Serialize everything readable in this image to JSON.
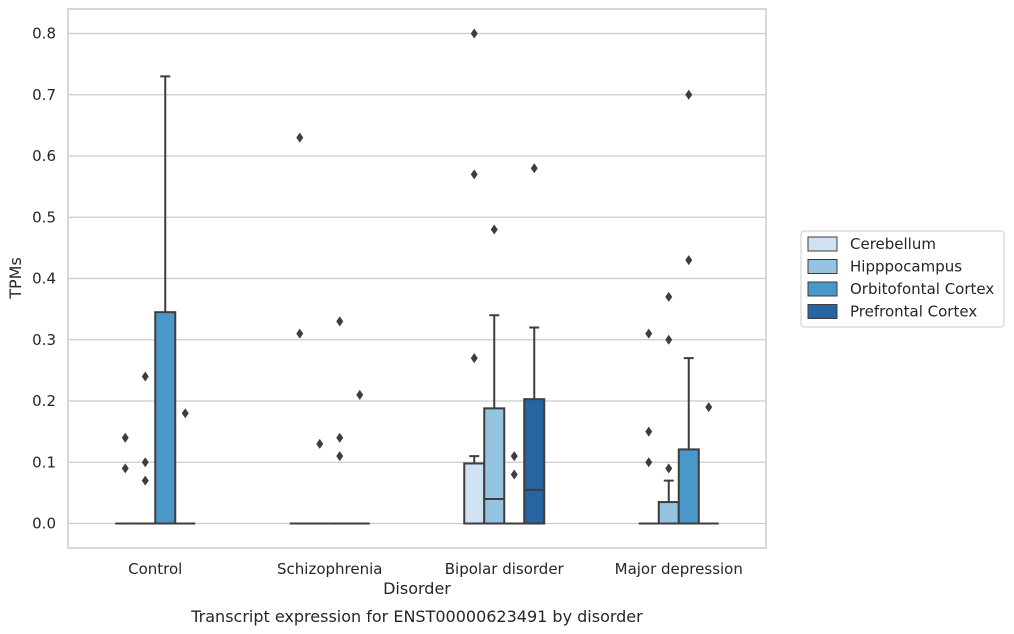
{
  "chart_data": {
    "type": "box",
    "caption": "Transcript expression for ENST00000623491 by disorder",
    "xlabel": "Disorder",
    "ylabel": "TPMs",
    "ylim": [
      -0.04,
      0.84
    ],
    "yticks": [
      0.0,
      0.1,
      0.2,
      0.3,
      0.4,
      0.5,
      0.6,
      0.7,
      0.8
    ],
    "ytick_labels": [
      "0.0",
      "0.1",
      "0.2",
      "0.3",
      "0.4",
      "0.5",
      "0.6",
      "0.7",
      "0.8"
    ],
    "grid": "horizontal",
    "legend_position": "right",
    "categories": [
      "Control",
      "Schizophrenia",
      "Bipolar disorder",
      "Major depression"
    ],
    "series": [
      {
        "name": "Cerebellum",
        "color": "#d0e1f2",
        "boxes": [
          {
            "q1": 0,
            "median": 0,
            "q3": 0,
            "whisker_low": 0,
            "whisker_high": 0,
            "outliers": [
              0.14,
              0.09
            ]
          },
          {
            "q1": 0,
            "median": 0,
            "q3": 0,
            "whisker_low": 0,
            "whisker_high": 0,
            "outliers": [
              0.63,
              0.31
            ]
          },
          {
            "q1": 0,
            "median": 0,
            "q3": 0.098,
            "whisker_low": 0,
            "whisker_high": 0.11,
            "outliers": [
              0.8,
              0.57,
              0.27
            ]
          },
          {
            "q1": 0,
            "median": 0,
            "q3": 0,
            "whisker_low": 0,
            "whisker_high": 0,
            "outliers": [
              0.31,
              0.15,
              0.1
            ]
          }
        ]
      },
      {
        "name": "Hipppocampus",
        "color": "#94c4df",
        "boxes": [
          {
            "q1": 0,
            "median": 0,
            "q3": 0,
            "whisker_low": 0,
            "whisker_high": 0,
            "outliers": [
              0.24,
              0.1,
              0.07
            ]
          },
          {
            "q1": 0,
            "median": 0,
            "q3": 0,
            "whisker_low": 0,
            "whisker_high": 0,
            "outliers": [
              0.13
            ]
          },
          {
            "q1": 0,
            "median": 0.04,
            "q3": 0.188,
            "whisker_low": 0,
            "whisker_high": 0.34,
            "outliers": [
              0.48
            ]
          },
          {
            "q1": 0,
            "median": 0,
            "q3": 0.035,
            "whisker_low": 0,
            "whisker_high": 0.07,
            "outliers": [
              0.37,
              0.3,
              0.09
            ]
          }
        ]
      },
      {
        "name": "Orbitofontal Cortex",
        "color": "#4a98c9",
        "boxes": [
          {
            "q1": 0,
            "median": 0,
            "q3": 0.345,
            "whisker_low": 0,
            "whisker_high": 0.73,
            "outliers": []
          },
          {
            "q1": 0,
            "median": 0,
            "q3": 0,
            "whisker_low": 0,
            "whisker_high": 0,
            "outliers": [
              0.33,
              0.14,
              0.11
            ]
          },
          {
            "q1": 0,
            "median": 0,
            "q3": 0,
            "whisker_low": 0,
            "whisker_high": 0,
            "outliers": [
              0.11,
              0.08
            ]
          },
          {
            "q1": 0,
            "median": 0,
            "q3": 0.121,
            "whisker_low": 0,
            "whisker_high": 0.27,
            "outliers": [
              0.7,
              0.43
            ]
          }
        ]
      },
      {
        "name": "Prefrontal Cortex",
        "color": "#2764a2",
        "boxes": [
          {
            "q1": 0,
            "median": 0,
            "q3": 0,
            "whisker_low": 0,
            "whisker_high": 0,
            "outliers": [
              0.18
            ]
          },
          {
            "q1": 0,
            "median": 0,
            "q3": 0,
            "whisker_low": 0,
            "whisker_high": 0,
            "outliers": [
              0.21
            ]
          },
          {
            "q1": 0,
            "median": 0.055,
            "q3": 0.203,
            "whisker_low": 0,
            "whisker_high": 0.32,
            "outliers": [
              0.58
            ]
          },
          {
            "q1": 0,
            "median": 0,
            "q3": 0,
            "whisker_low": 0,
            "whisker_high": 0,
            "outliers": [
              0.19
            ]
          }
        ]
      }
    ]
  }
}
